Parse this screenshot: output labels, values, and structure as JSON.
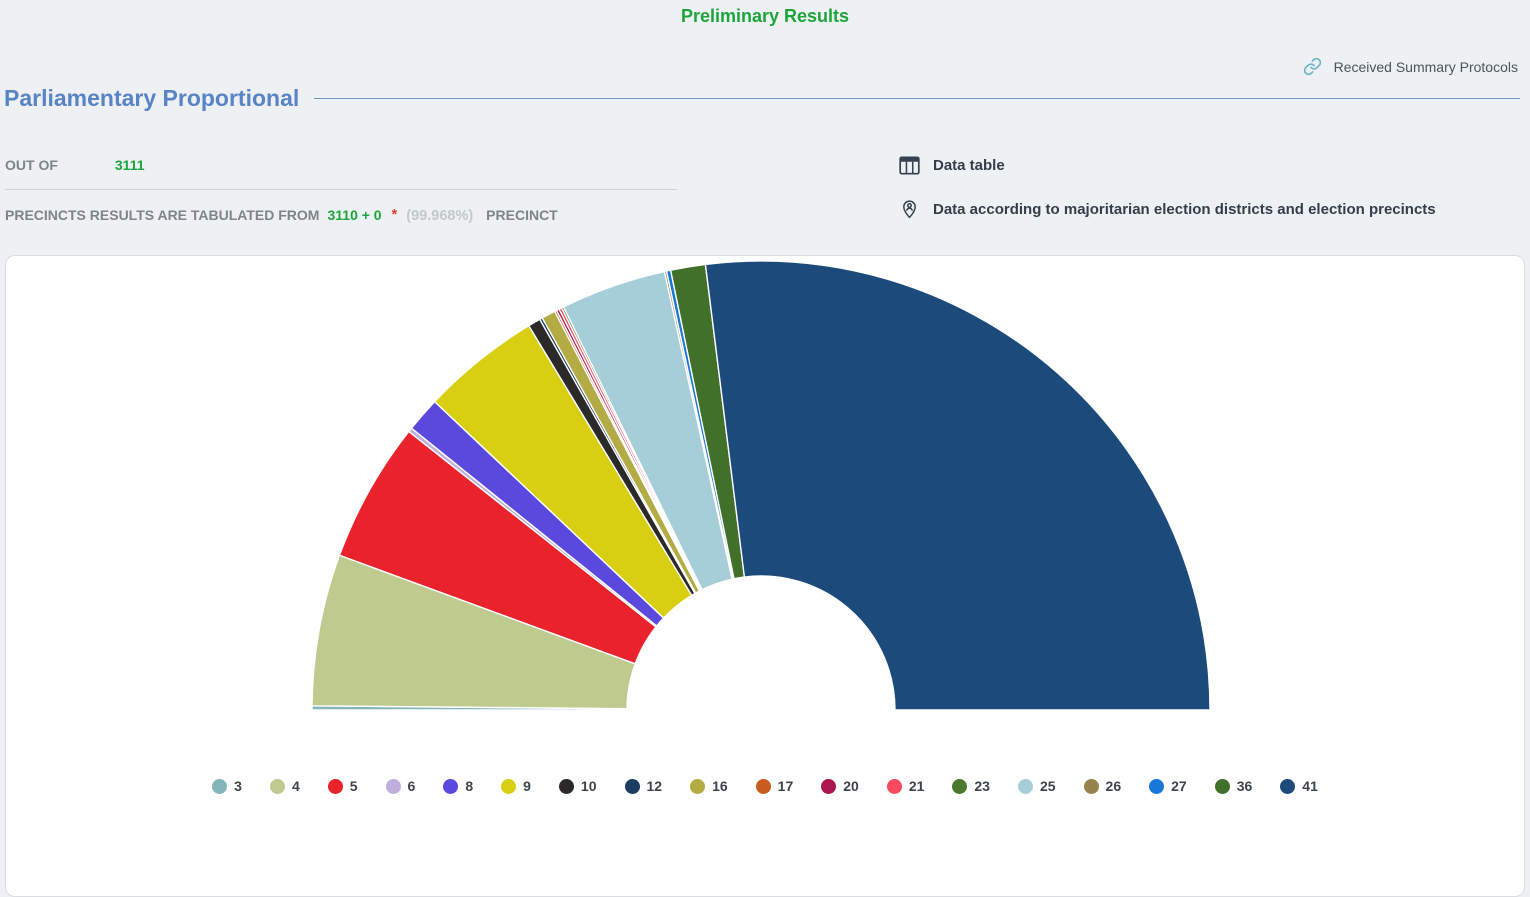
{
  "page": {
    "title": "Preliminary Results",
    "background_color": "#eef1f4",
    "accent_green": "#1da43a",
    "accent_blue": "#5884c6",
    "accent_red": "#e8392c"
  },
  "header": {
    "received_link_label": "Received Summary Protocols",
    "received_link_icon": "link-icon",
    "received_link_icon_color": "#68b1cc",
    "section_title": "Parliamentary Proportional"
  },
  "stats": {
    "out_of_label": "OUT OF",
    "out_of_value": "3111",
    "tabulated_label": "PRECINCTS RESULTS ARE TABULATED FROM",
    "tabulated_value": "3110 + 0",
    "asterisk": "*",
    "percent_text": "(99.968%)",
    "precinct_label": "PRECINCT"
  },
  "links": {
    "data_table_label": "Data table",
    "data_table_icon": "table-icon",
    "majoritarian_label": "Data according to majoritarian election districts and election precincts",
    "majoritarian_icon": "location-pin-icon",
    "icon_color": "#37424e"
  },
  "chart_data": {
    "type": "pie",
    "subtype": "half-donut",
    "title": "",
    "legend_position": "bottom",
    "inner_radius_ratio": 0.3,
    "value_unit": "percent of semicircle (estimated from segment angles)",
    "segments": [
      {
        "label": "3",
        "value": 0.3,
        "color": "#84b6b9"
      },
      {
        "label": "4",
        "value": 10.9,
        "color": "#bfca8e"
      },
      {
        "label": "5",
        "value": 10.1,
        "color": "#e9222b"
      },
      {
        "label": "6",
        "value": 0.3,
        "color": "#bfaede"
      },
      {
        "label": "8",
        "value": 2.5,
        "color": "#5b49de"
      },
      {
        "label": "9",
        "value": 8.6,
        "color": "#d8cf12"
      },
      {
        "label": "10",
        "value": 0.9,
        "color": "#2b2a28"
      },
      {
        "label": "12",
        "value": 0.2,
        "color": "#1d3c63"
      },
      {
        "label": "16",
        "value": 1.0,
        "color": "#b3ac45"
      },
      {
        "label": "17",
        "value": 0.15,
        "color": "#c95b1f"
      },
      {
        "label": "20",
        "value": 0.2,
        "color": "#ad164f"
      },
      {
        "label": "21",
        "value": 0.2,
        "color": "#f94a61"
      },
      {
        "label": "23",
        "value": 0.15,
        "color": "#49792f"
      },
      {
        "label": "25",
        "value": 7.6,
        "color": "#a6ced8"
      },
      {
        "label": "26",
        "value": 0.15,
        "color": "#968349"
      },
      {
        "label": "27",
        "value": 0.3,
        "color": "#1878d8"
      },
      {
        "label": "36",
        "value": 2.5,
        "color": "#41702a"
      },
      {
        "label": "41",
        "value": 53.95,
        "color": "#1c4a7b"
      }
    ]
  }
}
